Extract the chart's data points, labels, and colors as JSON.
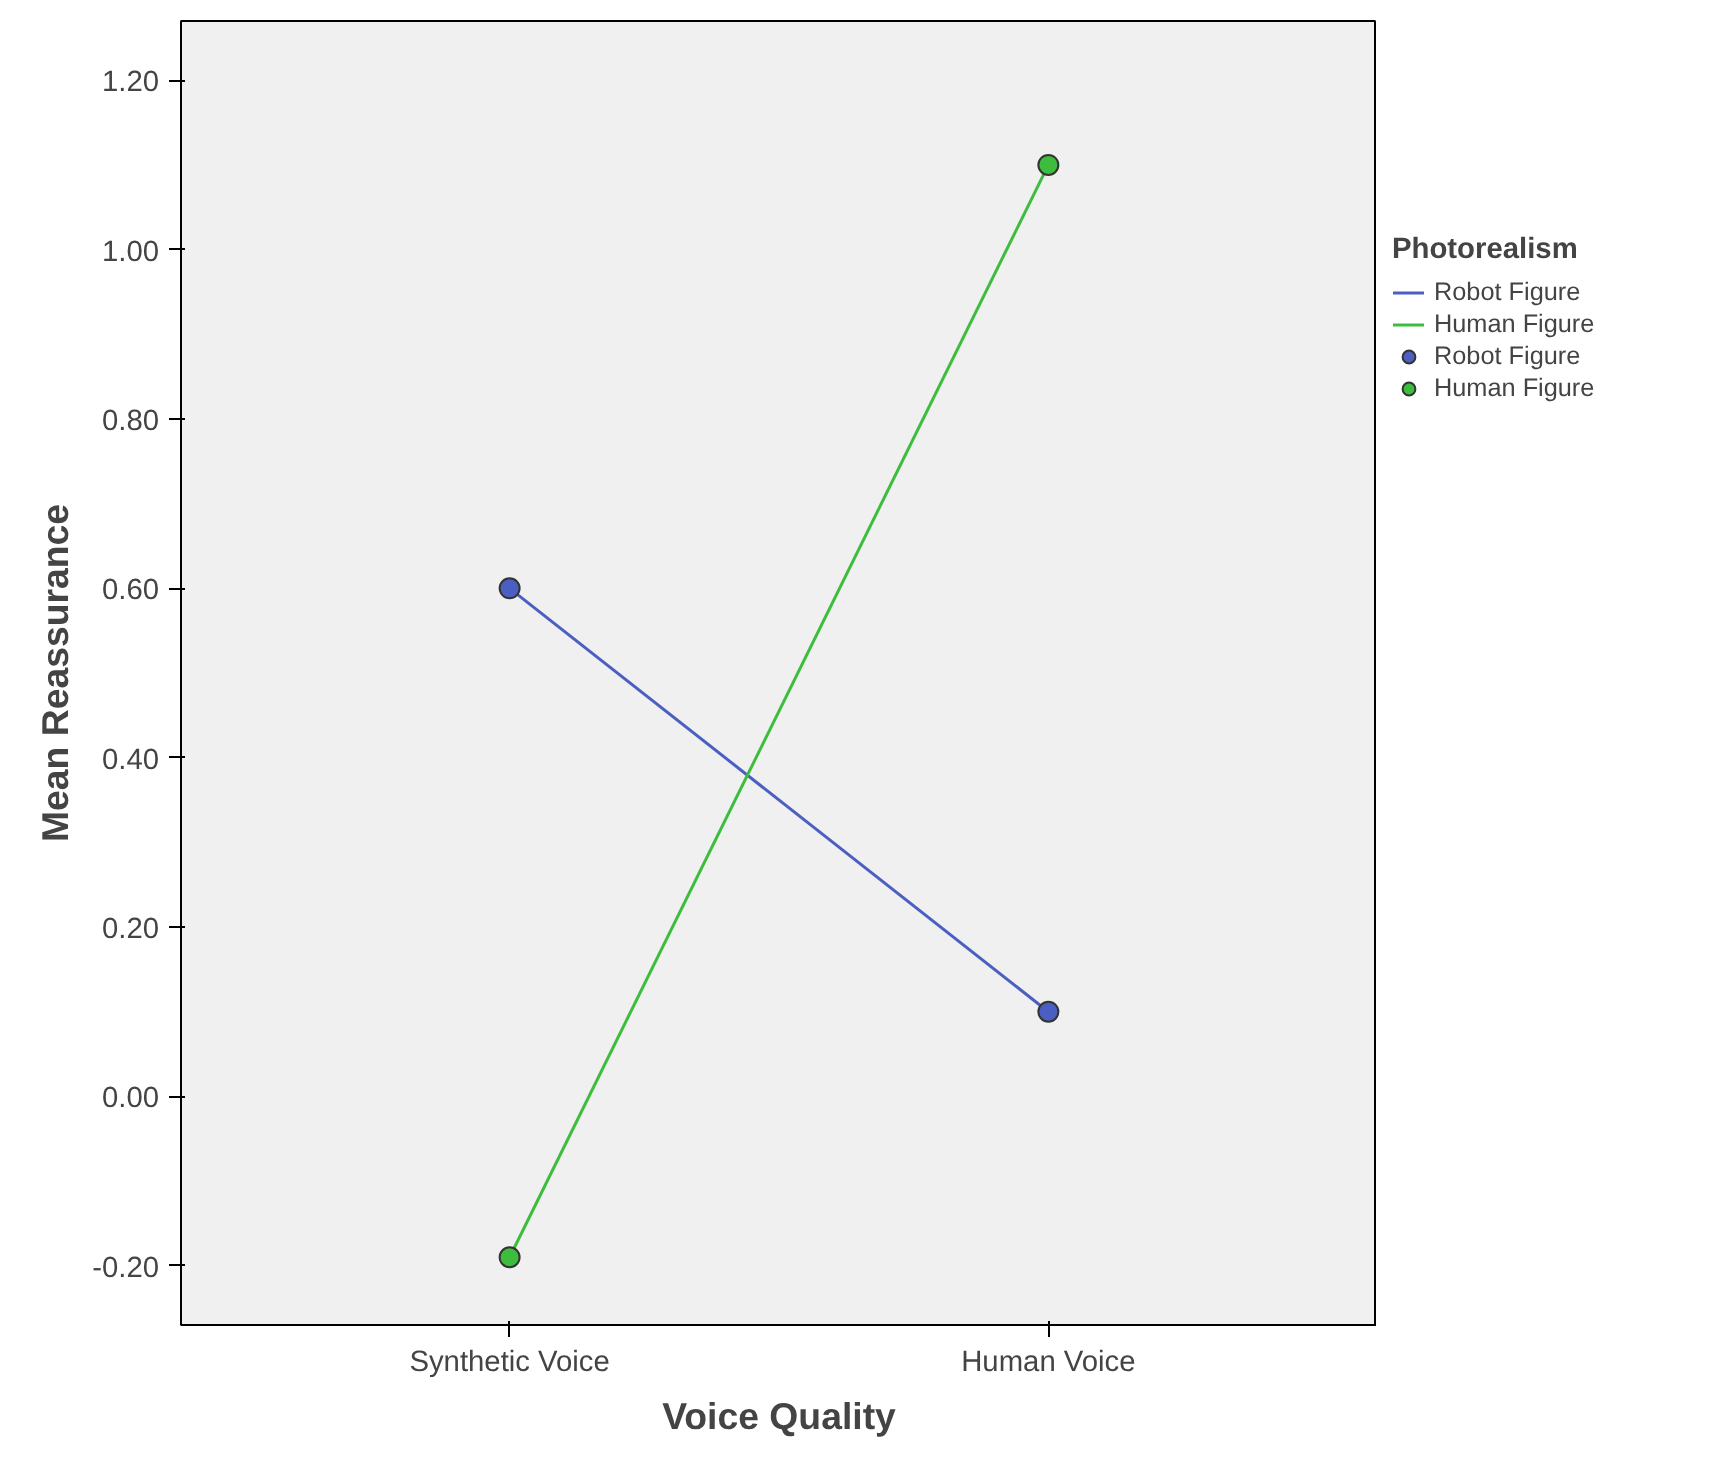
{
  "chart_data": {
    "type": "line",
    "xlabel": "Voice Quality",
    "ylabel": "Mean Reassurance",
    "legend_title": "Photorealism",
    "categories": [
      "Synthetic Voice",
      "Human Voice"
    ],
    "series": [
      {
        "name": "Robot Figure",
        "color": "#4a5fc1",
        "values": [
          0.6,
          0.1
        ]
      },
      {
        "name": "Human Figure",
        "color": "#3dbd3d",
        "values": [
          -0.19,
          1.1
        ]
      }
    ],
    "ylim": [
      -0.27,
      1.27
    ],
    "yticks": [
      {
        "value": -0.2,
        "label": "-0.20"
      },
      {
        "value": 0,
        "label": "0.00"
      },
      {
        "value": 0.2,
        "label": "0.20"
      },
      {
        "value": 0.4,
        "label": "0.40"
      },
      {
        "value": 0.6,
        "label": "0.60"
      },
      {
        "value": 0.8,
        "label": "0.80"
      },
      {
        "value": 1.0,
        "label": "1.00"
      },
      {
        "value": 1.2,
        "label": "1.20"
      }
    ],
    "grid": false,
    "legend": "right",
    "marker": "circle",
    "line_style": "solid"
  }
}
